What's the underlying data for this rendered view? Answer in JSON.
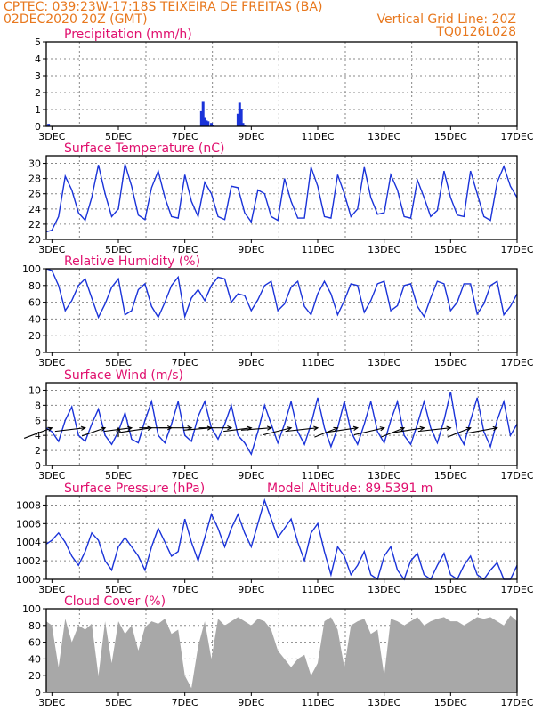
{
  "header": {
    "line1_left": "CPTEC:   039:23W-17:18S   TEIXEIRA DE FREITAS (BA)",
    "line2_left": "02DEC2020 20Z (GMT)",
    "line2_right": "Vertical Grid Line: 20Z",
    "line3_right": "TQ0126L028"
  },
  "colors": {
    "header": "#e8781e",
    "title": "#e0106e",
    "line": "#1a33d9",
    "bar": "#1a33d9",
    "cloud": "#a8a8a8",
    "arrow": "#000000"
  },
  "x_tick_labels": [
    "3DEC",
    "5DEC",
    "7DEC",
    "9DEC",
    "11DEC",
    "13DEC",
    "15DEC",
    "17DEC"
  ],
  "chart_data": [
    {
      "type": "bar",
      "title": "Precipitation (mm/h)",
      "ylim": [
        0,
        5
      ],
      "yticks": [
        0,
        1,
        2,
        3,
        4,
        5
      ],
      "x_range_days": [
        2.83,
        17.0
      ],
      "grid": true,
      "series": [
        {
          "x": [
            2.9,
            7.5,
            7.55,
            7.6,
            7.65,
            7.7,
            7.8,
            7.85,
            8.6,
            8.65,
            8.7,
            8.75,
            8.8
          ],
          "values": [
            0.15,
            0.9,
            1.45,
            0.5,
            0.35,
            0.3,
            0.2,
            0.1,
            0.75,
            1.4,
            1.0,
            0.2,
            0.05
          ]
        }
      ]
    },
    {
      "type": "line",
      "title": "Surface Temperature (nC)",
      "ylim": [
        20,
        31
      ],
      "yticks": [
        20,
        22,
        24,
        26,
        28,
        30
      ],
      "grid": true,
      "series": [
        {
          "x": [
            2.83,
            3.0,
            3.2,
            3.4,
            3.6,
            3.8,
            4.0,
            4.2,
            4.4,
            4.6,
            4.8,
            5.0,
            5.2,
            5.4,
            5.6,
            5.8,
            6.0,
            6.2,
            6.4,
            6.6,
            6.8,
            7.0,
            7.2,
            7.4,
            7.6,
            7.8,
            8.0,
            8.2,
            8.4,
            8.6,
            8.8,
            9.0,
            9.2,
            9.4,
            9.6,
            9.8,
            10.0,
            10.2,
            10.4,
            10.6,
            10.8,
            11.0,
            11.2,
            11.4,
            11.6,
            11.8,
            12.0,
            12.2,
            12.4,
            12.6,
            12.8,
            13.0,
            13.2,
            13.4,
            13.6,
            13.8,
            14.0,
            14.2,
            14.4,
            14.6,
            14.8,
            15.0,
            15.2,
            15.4,
            15.6,
            15.8,
            16.0,
            16.2,
            16.4,
            16.6,
            16.8,
            17.0
          ],
          "values": [
            21.0,
            21.2,
            23.0,
            28.3,
            26.5,
            23.5,
            22.5,
            25.5,
            29.8,
            26.0,
            23.0,
            24.0,
            29.9,
            27.0,
            23.2,
            22.6,
            26.8,
            29.0,
            25.5,
            23.0,
            22.8,
            28.5,
            25.0,
            23.0,
            27.5,
            26.0,
            23.0,
            22.6,
            27.0,
            26.8,
            23.5,
            22.3,
            26.5,
            26.0,
            23.0,
            22.5,
            28.0,
            25.0,
            22.8,
            22.8,
            29.5,
            27.0,
            23.0,
            22.8,
            28.5,
            26.0,
            23.0,
            24.0,
            29.5,
            25.5,
            23.3,
            23.5,
            28.5,
            26.5,
            23.0,
            22.8,
            27.8,
            25.5,
            23.0,
            23.8,
            29.0,
            25.5,
            23.2,
            23.0,
            29.0,
            26.0,
            23.0,
            22.5,
            27.5,
            29.6,
            27.0,
            25.5
          ]
        }
      ]
    },
    {
      "type": "line",
      "title": "Relative Humidity (%)",
      "ylim": [
        0,
        100
      ],
      "yticks": [
        0,
        20,
        40,
        60,
        80,
        100
      ],
      "grid": true,
      "series": [
        {
          "x": [
            2.83,
            3.0,
            3.2,
            3.4,
            3.6,
            3.8,
            4.0,
            4.2,
            4.4,
            4.6,
            4.8,
            5.0,
            5.2,
            5.4,
            5.6,
            5.8,
            6.0,
            6.2,
            6.4,
            6.6,
            6.8,
            7.0,
            7.2,
            7.4,
            7.6,
            7.8,
            8.0,
            8.2,
            8.4,
            8.6,
            8.8,
            9.0,
            9.2,
            9.4,
            9.6,
            9.8,
            10.0,
            10.2,
            10.4,
            10.6,
            10.8,
            11.0,
            11.2,
            11.4,
            11.6,
            11.8,
            12.0,
            12.2,
            12.4,
            12.6,
            12.8,
            13.0,
            13.2,
            13.4,
            13.6,
            13.8,
            14.0,
            14.2,
            14.4,
            14.6,
            14.8,
            15.0,
            15.2,
            15.4,
            15.6,
            15.8,
            16.0,
            16.2,
            16.4,
            16.6,
            16.8,
            17.0
          ],
          "values": [
            100,
            98,
            80,
            50,
            62,
            80,
            88,
            65,
            42,
            58,
            78,
            88,
            45,
            50,
            75,
            82,
            55,
            42,
            60,
            80,
            90,
            43,
            65,
            75,
            62,
            80,
            90,
            88,
            60,
            70,
            68,
            50,
            63,
            80,
            85,
            50,
            58,
            78,
            85,
            55,
            45,
            70,
            85,
            70,
            45,
            62,
            82,
            80,
            48,
            62,
            82,
            85,
            50,
            56,
            80,
            82,
            55,
            43,
            65,
            85,
            82,
            50,
            60,
            82,
            82,
            46,
            58,
            80,
            85,
            45,
            55,
            70
          ]
        }
      ]
    },
    {
      "type": "line",
      "title": "Surface Wind (m/s)",
      "ylim": [
        0,
        11
      ],
      "yticks": [
        0,
        2,
        4,
        6,
        8,
        10
      ],
      "grid": true,
      "series": [
        {
          "x": [
            2.83,
            3.0,
            3.2,
            3.4,
            3.6,
            3.8,
            4.0,
            4.2,
            4.4,
            4.6,
            4.8,
            5.0,
            5.2,
            5.4,
            5.6,
            5.8,
            6.0,
            6.2,
            6.4,
            6.6,
            6.8,
            7.0,
            7.2,
            7.4,
            7.6,
            7.8,
            8.0,
            8.2,
            8.4,
            8.6,
            8.8,
            9.0,
            9.2,
            9.4,
            9.6,
            9.8,
            10.0,
            10.2,
            10.4,
            10.6,
            10.8,
            11.0,
            11.2,
            11.4,
            11.6,
            11.8,
            12.0,
            12.2,
            12.4,
            12.6,
            12.8,
            13.0,
            13.2,
            13.4,
            13.6,
            13.8,
            14.0,
            14.2,
            14.4,
            14.6,
            14.8,
            15.0,
            15.2,
            15.4,
            15.6,
            15.8,
            16.0,
            16.2,
            16.4,
            16.6,
            16.8,
            17.0
          ],
          "values": [
            5.0,
            4.5,
            3.2,
            6.0,
            7.8,
            4.0,
            3.2,
            5.5,
            7.5,
            4.0,
            2.8,
            4.5,
            7.0,
            3.5,
            3.0,
            6.0,
            8.5,
            4.0,
            3.0,
            5.5,
            8.5,
            4.0,
            3.2,
            6.5,
            8.5,
            5.0,
            3.5,
            5.5,
            8.0,
            4.0,
            3.0,
            1.5,
            4.5,
            8.0,
            5.5,
            3.0,
            5.5,
            8.5,
            4.5,
            2.8,
            5.5,
            9.0,
            5.0,
            2.5,
            5.0,
            8.5,
            4.5,
            2.8,
            5.5,
            8.5,
            4.5,
            3.0,
            6.0,
            8.5,
            4.0,
            2.8,
            5.5,
            8.5,
            5.0,
            3.0,
            6.0,
            9.8,
            4.5,
            2.8,
            6.0,
            9.0,
            4.5,
            2.5,
            6.0,
            8.5,
            4.0,
            5.5
          ]
        }
      ],
      "vectors": [
        {
          "x": 3.0,
          "y": 5.0,
          "dx": 12,
          "dy": -9
        },
        {
          "x": 4.0,
          "y": 5.0,
          "dx": 13,
          "dy": -3
        },
        {
          "x": 4.6,
          "y": 5.0,
          "dx": 10,
          "dy": -7
        },
        {
          "x": 5.0,
          "y": 5.0,
          "dx": 0,
          "dy": -8
        },
        {
          "x": 5.4,
          "y": 5.0,
          "dx": 12,
          "dy": -3
        },
        {
          "x": 6.0,
          "y": 5.0,
          "dx": 14,
          "dy": -4
        },
        {
          "x": 6.6,
          "y": 5.0,
          "dx": 14,
          "dy": 0
        },
        {
          "x": 7.2,
          "y": 5.0,
          "dx": 14,
          "dy": 0
        },
        {
          "x": 7.8,
          "y": 5.0,
          "dx": 12,
          "dy": -2
        },
        {
          "x": 8.4,
          "y": 5.0,
          "dx": 14,
          "dy": 0
        },
        {
          "x": 9.0,
          "y": 5.0,
          "dx": 12,
          "dy": -3
        },
        {
          "x": 9.6,
          "y": 5.0,
          "dx": 13,
          "dy": -2
        },
        {
          "x": 10.2,
          "y": 5.0,
          "dx": 12,
          "dy": -6
        },
        {
          "x": 11.0,
          "y": 5.0,
          "dx": 14,
          "dy": -3
        },
        {
          "x": 11.6,
          "y": 5.0,
          "dx": 10,
          "dy": -8
        },
        {
          "x": 12.2,
          "y": 5.0,
          "dx": 14,
          "dy": -4
        },
        {
          "x": 13.0,
          "y": 5.0,
          "dx": 13,
          "dy": -6
        },
        {
          "x": 13.6,
          "y": 5.0,
          "dx": 10,
          "dy": -8
        },
        {
          "x": 14.2,
          "y": 5.0,
          "dx": 13,
          "dy": -4
        },
        {
          "x": 15.0,
          "y": 5.0,
          "dx": 14,
          "dy": -3
        },
        {
          "x": 15.6,
          "y": 5.0,
          "dx": 10,
          "dy": -8
        },
        {
          "x": 16.4,
          "y": 5.0,
          "dx": 14,
          "dy": -5
        }
      ]
    },
    {
      "type": "line",
      "title": "Surface Pressure (hPa)",
      "annotation": "Model Altitude: 89.5391 m",
      "ylim": [
        1000,
        1009
      ],
      "yticks": [
        1000,
        1002,
        1004,
        1006,
        1008
      ],
      "grid": true,
      "series": [
        {
          "x": [
            2.83,
            3.0,
            3.2,
            3.4,
            3.6,
            3.8,
            4.0,
            4.2,
            4.4,
            4.6,
            4.8,
            5.0,
            5.2,
            5.4,
            5.6,
            5.8,
            6.0,
            6.2,
            6.4,
            6.6,
            6.8,
            7.0,
            7.2,
            7.4,
            7.6,
            7.8,
            8.0,
            8.2,
            8.4,
            8.6,
            8.8,
            9.0,
            9.2,
            9.4,
            9.6,
            9.8,
            10.0,
            10.2,
            10.4,
            10.6,
            10.8,
            11.0,
            11.2,
            11.4,
            11.6,
            11.8,
            12.0,
            12.2,
            12.4,
            12.6,
            12.8,
            13.0,
            13.2,
            13.4,
            13.6,
            13.8,
            14.0,
            14.2,
            14.4,
            14.6,
            14.8,
            15.0,
            15.2,
            15.4,
            15.6,
            15.8,
            16.0,
            16.2,
            16.4,
            16.6,
            16.8,
            17.0
          ],
          "values": [
            1003.8,
            1004.2,
            1005.0,
            1004.0,
            1002.5,
            1001.5,
            1003.0,
            1005.0,
            1004.2,
            1002.0,
            1001.0,
            1003.5,
            1004.5,
            1003.5,
            1002.5,
            1001.0,
            1003.5,
            1005.5,
            1004.0,
            1002.5,
            1003.0,
            1006.5,
            1004.0,
            1002.0,
            1004.5,
            1007.0,
            1005.5,
            1003.5,
            1005.5,
            1007.0,
            1005.0,
            1003.5,
            1006.0,
            1008.5,
            1006.5,
            1004.5,
            1005.5,
            1006.5,
            1004.0,
            1002.0,
            1005.0,
            1006.0,
            1003.0,
            1000.5,
            1003.5,
            1002.5,
            1000.5,
            1001.5,
            1003.0,
            1000.5,
            999.8,
            1002.5,
            1003.5,
            1001.0,
            1000.0,
            1002.0,
            1002.8,
            1000.5,
            999.8,
            1001.5,
            1002.8,
            1000.5,
            999.8,
            1001.5,
            1002.5,
            1000.5,
            999.5,
            1001.0,
            1001.8,
            1000.0,
            999.8,
            1001.5
          ]
        }
      ]
    },
    {
      "type": "area",
      "title": "Cloud Cover (%)",
      "ylim": [
        0,
        100
      ],
      "yticks": [
        0,
        20,
        40,
        60,
        80,
        100
      ],
      "grid": true,
      "series": [
        {
          "x": [
            2.83,
            3.0,
            3.2,
            3.4,
            3.6,
            3.8,
            4.0,
            4.2,
            4.4,
            4.6,
            4.8,
            5.0,
            5.2,
            5.4,
            5.6,
            5.8,
            6.0,
            6.2,
            6.4,
            6.6,
            6.8,
            7.0,
            7.2,
            7.4,
            7.6,
            7.8,
            8.0,
            8.2,
            8.4,
            8.6,
            8.8,
            9.0,
            9.2,
            9.4,
            9.6,
            9.8,
            10.0,
            10.2,
            10.4,
            10.6,
            10.8,
            11.0,
            11.2,
            11.4,
            11.6,
            11.8,
            12.0,
            12.2,
            12.4,
            12.6,
            12.8,
            13.0,
            13.2,
            13.4,
            13.6,
            13.8,
            14.0,
            14.2,
            14.4,
            14.6,
            14.8,
            15.0,
            15.2,
            15.4,
            15.6,
            15.8,
            16.0,
            16.2,
            16.4,
            16.6,
            16.8,
            17.0
          ],
          "values": [
            85,
            80,
            30,
            88,
            60,
            80,
            75,
            82,
            20,
            85,
            35,
            85,
            70,
            80,
            50,
            78,
            85,
            82,
            88,
            70,
            75,
            20,
            5,
            55,
            85,
            40,
            88,
            80,
            85,
            90,
            85,
            80,
            88,
            85,
            75,
            50,
            40,
            30,
            40,
            45,
            20,
            35,
            85,
            90,
            75,
            30,
            80,
            85,
            88,
            70,
            75,
            20,
            88,
            85,
            80,
            85,
            90,
            80,
            85,
            88,
            90,
            85,
            85,
            80,
            85,
            90,
            88,
            90,
            85,
            80,
            92,
            85
          ]
        }
      ]
    }
  ]
}
